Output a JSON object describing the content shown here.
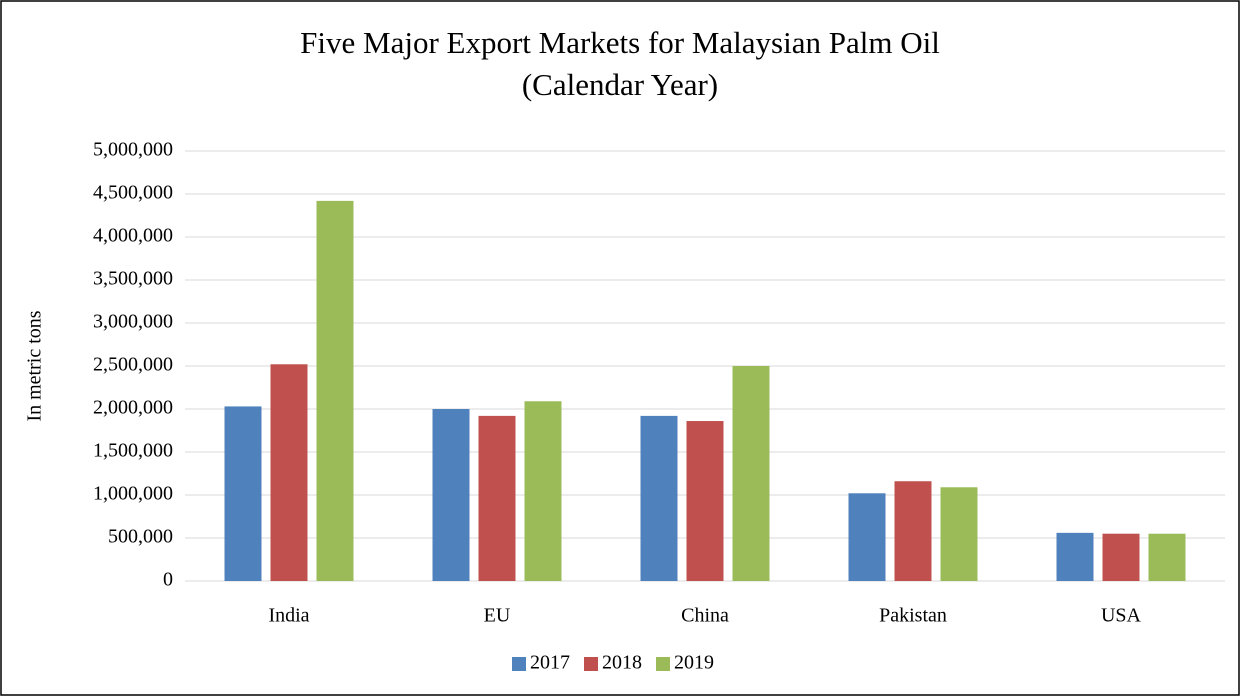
{
  "chart_data": {
    "type": "bar",
    "title": "Five Major Export Markets for Malaysian Palm Oil",
    "subtitle": "(Calendar Year)",
    "y_label": "In metric tons",
    "categories": [
      "India",
      "EU",
      "China",
      "Pakistan",
      "USA"
    ],
    "series": [
      {
        "name": "2017",
        "color": "#4f81bd",
        "values": [
          2030000,
          2000000,
          1920000,
          1020000,
          560000
        ]
      },
      {
        "name": "2018",
        "color": "#c0504d",
        "values": [
          2520000,
          1920000,
          1860000,
          1160000,
          550000
        ]
      },
      {
        "name": "2019",
        "color": "#9bbb59",
        "values": [
          4420000,
          2090000,
          2500000,
          1090000,
          550000
        ]
      }
    ],
    "ylim": [
      0,
      5000000
    ],
    "yticks": [
      0,
      {
        "value": 500000,
        "label": "500,000"
      },
      {
        "value": 1000000,
        "label": "1,000,000"
      },
      {
        "value": 1500000,
        "label": "1,500,000"
      },
      {
        "value": 2000000,
        "label": "2,000,000"
      },
      {
        "value": 2500000,
        "label": "2,500,000"
      },
      {
        "value": 3000000,
        "label": "3,000,000"
      },
      {
        "value": 3500000,
        "label": "3,500,000"
      },
      {
        "value": 4000000,
        "label": "4,000,000"
      },
      {
        "value": 4500000,
        "label": "4,500,000"
      },
      {
        "value": 5000000,
        "label": "5,000,000"
      }
    ],
    "grid": true,
    "legend": "bottom"
  }
}
